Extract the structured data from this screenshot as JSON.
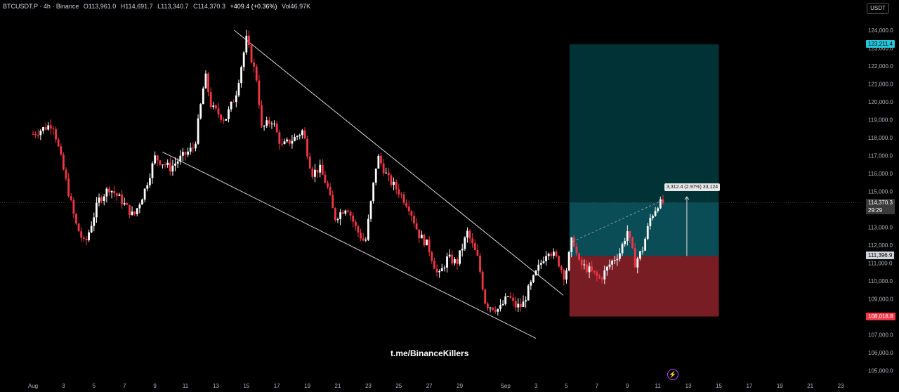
{
  "header": {
    "symbol": "BTCUSDT.P · 4h · Binance",
    "open": "O113,961.0",
    "high": "H114,691.7",
    "low": "L113,340.7",
    "close": "C114,370.3",
    "change": "+409.4 (+0.36%)",
    "volume": "Vol46.97K"
  },
  "currency_button": "USDT",
  "watermark": "t.me/BinanceKillers",
  "colors": {
    "up": "#ffffff",
    "down": "#f23645",
    "target_zone": "#003236",
    "profit_zone": "#0a4d56",
    "stop_zone": "#791d24",
    "target_tag": "#26c6da",
    "stop_tag": "#f23645"
  },
  "price_axis": [
    "124,000.0",
    "123,000.0",
    "122,000.0",
    "121,000.0",
    "120,000.0",
    "119,000.0",
    "118,000.0",
    "117,000.0",
    "116,000.0",
    "115,000.0",
    "114,000.0",
    "113,000.0",
    "112,000.0",
    "111,000.0",
    "110,000.0",
    "109,000.0",
    "108,000.0",
    "107,000.0",
    "106,000.0",
    "105,000.0"
  ],
  "price_tags": {
    "target": "123,211.4",
    "last": "114,370.3",
    "countdown": "29:29",
    "entry": "111,396.9",
    "stop": "108,018.8"
  },
  "measure_label": "3,312.4 (2.97%) 33,124",
  "chart_data": {
    "type": "candlestick",
    "symbol": "BTCUSDT.P",
    "timeframe": "4h",
    "x_ticks": [
      "Aug",
      "3",
      "5",
      "7",
      "9",
      "11",
      "13",
      "15",
      "17",
      "19",
      "21",
      "23",
      "25",
      "27",
      "29",
      "Sep",
      "3",
      "5",
      "7",
      "9",
      "11",
      "13",
      "15",
      "17",
      "19",
      "21",
      "23"
    ],
    "ylim": [
      104800,
      124600
    ],
    "close_path": [
      {
        "day": 0.0,
        "price": 118200
      },
      {
        "day": 1.3,
        "price": 118800
      },
      {
        "day": 2.0,
        "price": 116200
      },
      {
        "day": 2.8,
        "price": 113200
      },
      {
        "day": 3.4,
        "price": 112000
      },
      {
        "day": 4.3,
        "price": 114500
      },
      {
        "day": 5.0,
        "price": 115200
      },
      {
        "day": 5.7,
        "price": 114600
      },
      {
        "day": 6.6,
        "price": 113600
      },
      {
        "day": 7.3,
        "price": 115000
      },
      {
        "day": 8.0,
        "price": 116900
      },
      {
        "day": 9.0,
        "price": 116300
      },
      {
        "day": 9.6,
        "price": 116800
      },
      {
        "day": 10.6,
        "price": 117500
      },
      {
        "day": 11.3,
        "price": 121500
      },
      {
        "day": 11.7,
        "price": 119700
      },
      {
        "day": 12.6,
        "price": 119000
      },
      {
        "day": 13.3,
        "price": 120400
      },
      {
        "day": 14.0,
        "price": 123500
      },
      {
        "day": 14.7,
        "price": 121200
      },
      {
        "day": 15.0,
        "price": 118500
      },
      {
        "day": 15.7,
        "price": 119000
      },
      {
        "day": 16.3,
        "price": 117500
      },
      {
        "day": 17.2,
        "price": 118000
      },
      {
        "day": 17.7,
        "price": 118400
      },
      {
        "day": 18.3,
        "price": 116000
      },
      {
        "day": 18.8,
        "price": 116300
      },
      {
        "day": 19.3,
        "price": 115300
      },
      {
        "day": 19.8,
        "price": 113500
      },
      {
        "day": 20.6,
        "price": 114200
      },
      {
        "day": 21.2,
        "price": 112900
      },
      {
        "day": 21.8,
        "price": 112100
      },
      {
        "day": 22.6,
        "price": 117000
      },
      {
        "day": 23.3,
        "price": 115700
      },
      {
        "day": 24.0,
        "price": 115000
      },
      {
        "day": 24.7,
        "price": 114100
      },
      {
        "day": 25.3,
        "price": 112600
      },
      {
        "day": 25.9,
        "price": 112000
      },
      {
        "day": 26.6,
        "price": 110200
      },
      {
        "day": 27.2,
        "price": 111300
      },
      {
        "day": 27.8,
        "price": 111000
      },
      {
        "day": 28.5,
        "price": 112700
      },
      {
        "day": 29.2,
        "price": 111200
      },
      {
        "day": 29.7,
        "price": 108700
      },
      {
        "day": 30.6,
        "price": 108400
      },
      {
        "day": 31.2,
        "price": 109200
      },
      {
        "day": 31.6,
        "price": 108600
      },
      {
        "day": 32.1,
        "price": 108600
      },
      {
        "day": 32.5,
        "price": 109500
      },
      {
        "day": 33.2,
        "price": 110800
      },
      {
        "day": 33.8,
        "price": 111800
      },
      {
        "day": 34.4,
        "price": 111200
      },
      {
        "day": 34.9,
        "price": 110200
      },
      {
        "day": 35.4,
        "price": 112500
      },
      {
        "day": 35.8,
        "price": 111000
      },
      {
        "day": 36.5,
        "price": 110600
      },
      {
        "day": 37.2,
        "price": 110100
      },
      {
        "day": 37.9,
        "price": 111000
      },
      {
        "day": 38.5,
        "price": 111600
      },
      {
        "day": 39.0,
        "price": 112800
      },
      {
        "day": 39.5,
        "price": 111000
      },
      {
        "day": 40.0,
        "price": 111800
      },
      {
        "day": 40.5,
        "price": 113500
      },
      {
        "day": 41.0,
        "price": 114300
      },
      {
        "day": 41.4,
        "price": 114370
      }
    ],
    "trendlines": [
      {
        "name": "upper",
        "from": {
          "day": 13.2,
          "price": 124000
        },
        "to": {
          "day": 34.8,
          "price": 109200
        }
      },
      {
        "name": "lower",
        "from": {
          "day": 8.5,
          "price": 117200
        },
        "to": {
          "day": 33.0,
          "price": 106800
        }
      }
    ],
    "long_position": {
      "entry": 111396.9,
      "target": 123211.4,
      "stop": 108018.8,
      "from_day": 35.2,
      "to_day": 45.0
    }
  }
}
